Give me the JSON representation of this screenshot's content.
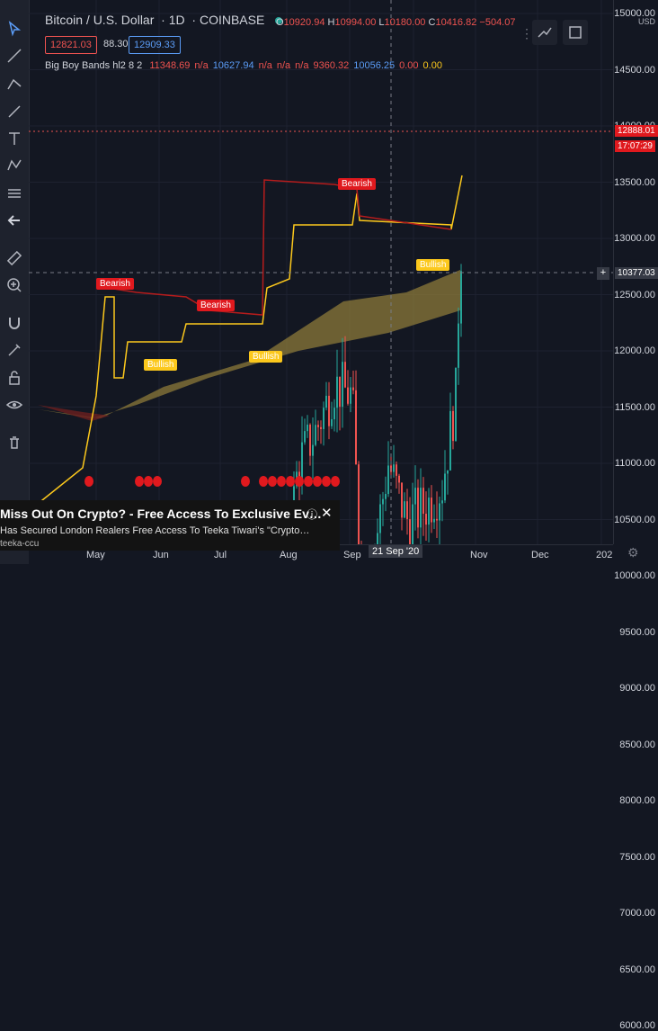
{
  "header": {
    "symbol": "Bitcoin / U.S. Dollar",
    "interval": "1D",
    "exchange": "COINBASE",
    "ohlc": {
      "o_label": "O",
      "o": "10920.94",
      "h_label": "H",
      "h": "10994.00",
      "l_label": "L",
      "l": "10180.00",
      "c_label": "C",
      "c": "10416.82",
      "change": "−504.07"
    },
    "bid": "12821.03",
    "spread": "88.30",
    "ask": "12909.33"
  },
  "indicator": {
    "name": "Big Boy Bands hl2 8 2",
    "values": [
      "11348.69",
      "n/a",
      "10627.94",
      "n/a",
      "n/a",
      "n/a",
      "9360.32",
      "10056.25",
      "0.00",
      "0.00"
    ],
    "colors": [
      "#ef5350",
      "#ef5350",
      "#5b9cf6",
      "#ef5350",
      "#ef5350",
      "#ef5350",
      "#ef5350",
      "#5b9cf6",
      "#ef5350",
      "#fcc81c"
    ]
  },
  "price_axis": {
    "unit": "USD",
    "ticks": [
      "15000.00",
      "14500.00",
      "14000.00",
      "13500.00",
      "13000.00",
      "12500.00",
      "12000.00",
      "11500.00",
      "11000.00",
      "10500.00",
      "10000.00",
      "9500.00",
      "9000.00",
      "8500.00",
      "8000.00",
      "7500.00",
      "7000.00",
      "6500.00",
      "6000.00"
    ],
    "last_price": "12888.01",
    "countdown": "17:07:29",
    "crosshair_price": "10377.03"
  },
  "time_axis": {
    "ticks": [
      "May",
      "Jun",
      "Jul",
      "Aug",
      "Sep",
      "Nov",
      "Dec",
      "202"
    ],
    "crosshair_date": "21 Sep '20"
  },
  "signals": {
    "bearish": "Bearish",
    "bullish": "Bullish"
  },
  "ad": {
    "title": "Miss Out On Crypto? - Free Access To Exclusive Ev…",
    "text": "Has Secured London Realers Free Access To Teeka Tiwari's \"Crypto…",
    "source": "teeka-ccu"
  },
  "colors": {
    "up": "#26a69a",
    "down": "#ef5350",
    "band_fill": "#8c7a3a",
    "bull": "#fcc81c",
    "bear": "#e0191e"
  }
}
